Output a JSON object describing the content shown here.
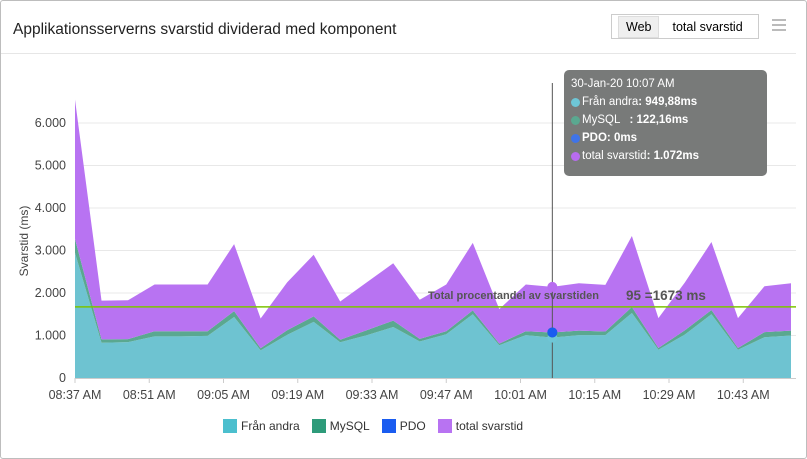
{
  "header": {
    "title": "Applikationsserverns svarstid dividerad med komponent",
    "toggle": [
      "Web",
      "total svarstid"
    ],
    "menu_icon": "hamburger-icon"
  },
  "tooltip": {
    "time": "30-Jan-20 10:07 AM",
    "rows": [
      {
        "label": "Från andra",
        "value": ": 949,88ms",
        "color": "#6ec6d6"
      },
      {
        "label": "MySQL   ",
        "value": ": 122,16ms",
        "color": "#5aa890"
      },
      {
        "label": "PDO",
        "value": ": 0ms",
        "color": "#3f74e8"
      },
      {
        "label": "total svarstid",
        "value": ": 1.072ms",
        "color": "#b86cf0"
      }
    ]
  },
  "chart_data": {
    "type": "area",
    "stacked": true,
    "ylabel": "Svarstid (ms)",
    "ylim": [
      0,
      6700
    ],
    "yticks": [
      "0",
      "1.000",
      "2.000",
      "3.000",
      "4.000",
      "5.000",
      "6.000"
    ],
    "ytick_values": [
      0,
      1000,
      2000,
      3000,
      4000,
      5000,
      6000
    ],
    "xticks": [
      "08:37 AM",
      "08:51 AM",
      "09:05 AM",
      "09:19 AM",
      "09:33 AM",
      "09:47 AM",
      "10:01 AM",
      "10:15 AM",
      "10:29 AM",
      "10:43 AM"
    ],
    "x": [
      "08:37",
      "08:42",
      "08:47",
      "08:52",
      "08:57",
      "09:02",
      "09:07",
      "09:12",
      "09:17",
      "09:22",
      "09:27",
      "09:32",
      "09:37",
      "09:42",
      "09:47",
      "09:52",
      "09:57",
      "10:02",
      "10:07",
      "10:12",
      "10:17",
      "10:22",
      "10:27",
      "10:32",
      "10:37",
      "10:42",
      "10:47",
      "10:52"
    ],
    "series": [
      {
        "name": "Från andra",
        "color": "#6ec3d1",
        "values": [
          2945,
          830,
          845,
          980,
          980,
          990,
          1435,
          650,
          1015,
          1320,
          840,
          1005,
          1200,
          860,
          1030,
          1500,
          770,
          1010,
          949.88,
          1010,
          1010,
          1530,
          665,
          1025,
          1500,
          665,
          960,
          1000
        ]
      },
      {
        "name": "MySQL",
        "color": "#5aa890",
        "values": [
          330,
          80,
          70,
          120,
          120,
          110,
          140,
          50,
          110,
          130,
          60,
          120,
          150,
          60,
          70,
          90,
          40,
          90,
          122.16,
          105,
          85,
          140,
          40,
          100,
          100,
          40,
          120,
          115
        ]
      },
      {
        "name": "PDO",
        "color": "#1a5cf0",
        "values": [
          0,
          0,
          0,
          0,
          0,
          0,
          0,
          0,
          0,
          0,
          0,
          0,
          0,
          0,
          0,
          0,
          0,
          0,
          0,
          0,
          0,
          0,
          0,
          0,
          0,
          0,
          0,
          0
        ]
      },
      {
        "name": "total svarstid",
        "color": "#b873f2",
        "values": [
          3275,
          910,
          915,
          1100,
          1100,
          1100,
          1575,
          700,
          1125,
          1450,
          900,
          1125,
          1350,
          920,
          1100,
          1590,
          810,
          1100,
          1072,
          1115,
          1095,
          1670,
          705,
          1125,
          1600,
          705,
          1080,
          1115
        ]
      }
    ],
    "threshold": {
      "value": 1673,
      "label": "Total procentandel av svarstiden",
      "value_label": "95 =1673 ms",
      "color": "#7cc400"
    },
    "hover_x": "10:07",
    "grid": true,
    "legend": "bottom"
  }
}
